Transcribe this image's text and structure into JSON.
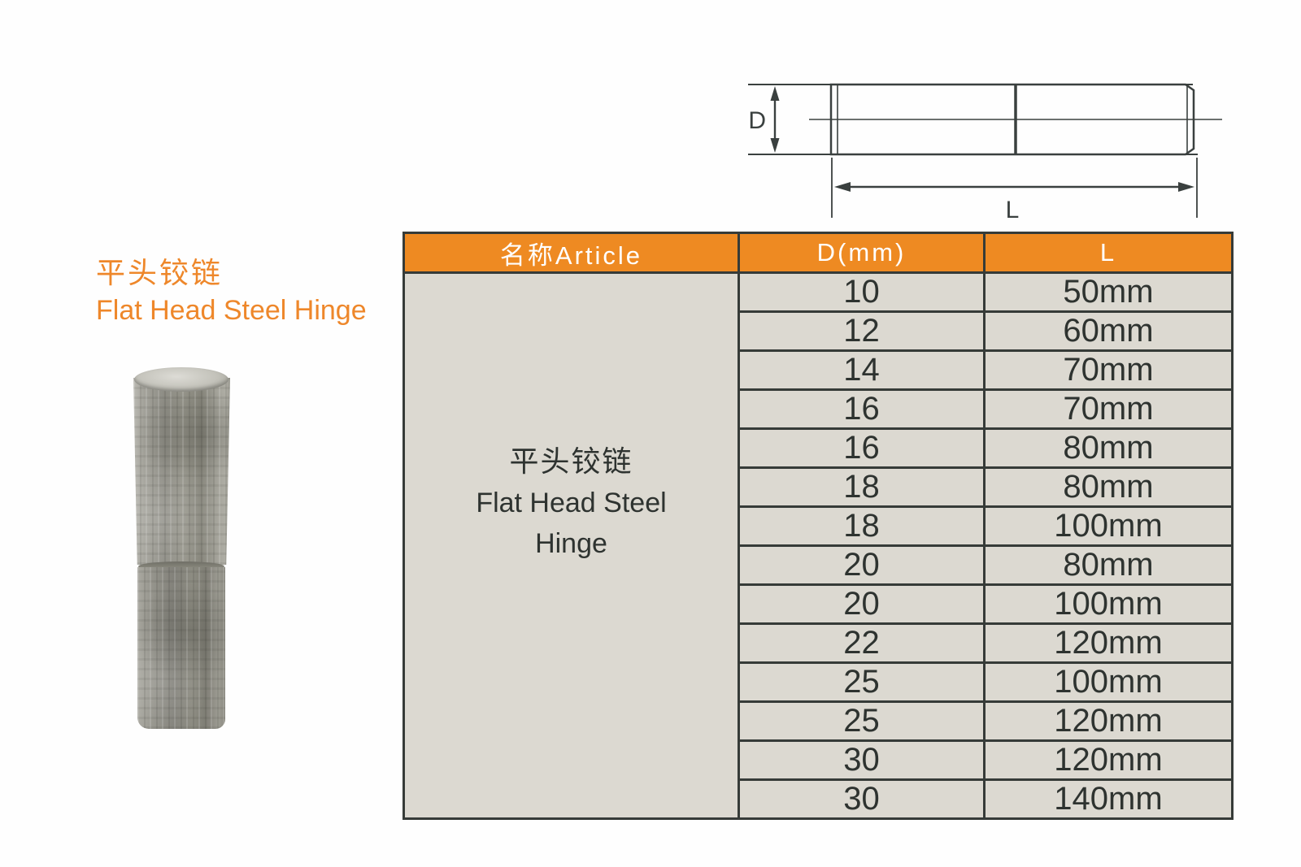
{
  "title": {
    "zh": "平头铰链",
    "en": "Flat Head Steel Hinge"
  },
  "diagram": {
    "d_label": "D",
    "l_label": "L"
  },
  "table": {
    "headers": [
      "名称Article",
      "D(mm)",
      "L"
    ],
    "article": {
      "zh": "平头铰链",
      "en_line1": "Flat Head Steel",
      "en_line2": "Hinge"
    },
    "rows": [
      {
        "d": "10",
        "l": "50mm"
      },
      {
        "d": "12",
        "l": "60mm"
      },
      {
        "d": "14",
        "l": "70mm"
      },
      {
        "d": "16",
        "l": "70mm"
      },
      {
        "d": "16",
        "l": "80mm"
      },
      {
        "d": "18",
        "l": "80mm"
      },
      {
        "d": "18",
        "l": "100mm"
      },
      {
        "d": "20",
        "l": "80mm"
      },
      {
        "d": "20",
        "l": "100mm"
      },
      {
        "d": "22",
        "l": "120mm"
      },
      {
        "d": "25",
        "l": "100mm"
      },
      {
        "d": "25",
        "l": "120mm"
      },
      {
        "d": "30",
        "l": "120mm"
      },
      {
        "d": "30",
        "l": "140mm"
      }
    ]
  },
  "colors": {
    "accent_orange": "#ee8a22",
    "table_cell_bg": "#dcd9d1",
    "table_border": "#363b38",
    "diagram_line": "#3a403f",
    "title_orange": "#ee872a"
  }
}
